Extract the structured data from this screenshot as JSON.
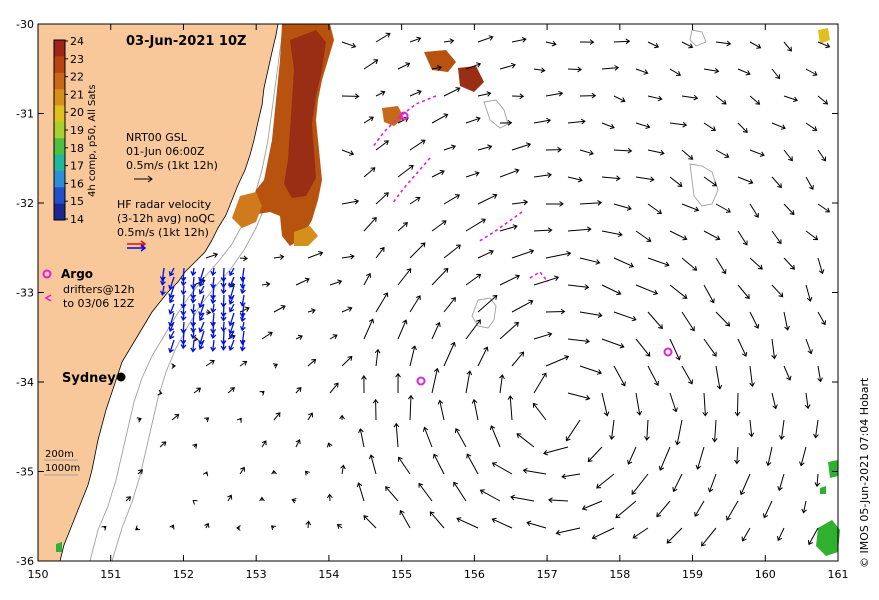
{
  "title": "03-Jun-2021 10Z",
  "colorbar": {
    "label": "4h comp, p50, All Sats",
    "ticks": [
      "24",
      "23",
      "22",
      "21",
      "20",
      "19",
      "18",
      "17",
      "16",
      "15",
      "14"
    ],
    "colors": [
      "#a02418",
      "#b8440f",
      "#c9661a",
      "#d4901a",
      "#dfc020",
      "#a8cf2e",
      "#4fbf42",
      "#1fb89a",
      "#2b8fd8",
      "#2350c8",
      "#1a2890"
    ]
  },
  "legend_gsl": {
    "line1": "NRT00 GSL",
    "line2": "01-Jun 06:00Z",
    "line3": "0.5m/s (1kt 12h)"
  },
  "legend_hf": {
    "line1": "HF radar velocity",
    "line2": "(3-12h avg) noQC",
    "line3": "0.5m/s (1kt 12h)"
  },
  "legend_argo": {
    "argo_label": "Argo",
    "drifters_line1": "drifters@12h",
    "drifters_line2": "to 03/06 12Z"
  },
  "bathy_legend": {
    "line1": "200m",
    "line2": "1000m"
  },
  "city": "Sydney",
  "credit": "© IMOS 05-Jun-2021 07:04 Hobart",
  "x_ticks": [
    "150",
    "151",
    "152",
    "153",
    "154",
    "155",
    "156",
    "157",
    "158",
    "159",
    "160",
    "161"
  ],
  "y_ticks": [
    "-30",
    "-31",
    "-32",
    "-33",
    "-34",
    "-35",
    "-36"
  ],
  "colors": {
    "land": "#f9c89a",
    "frame": "#000000",
    "drifter": "#e020e0",
    "hf_radar": "#0010e0",
    "bathymetry": "#a0a0a0",
    "sst_warm": "#b8520f"
  }
}
